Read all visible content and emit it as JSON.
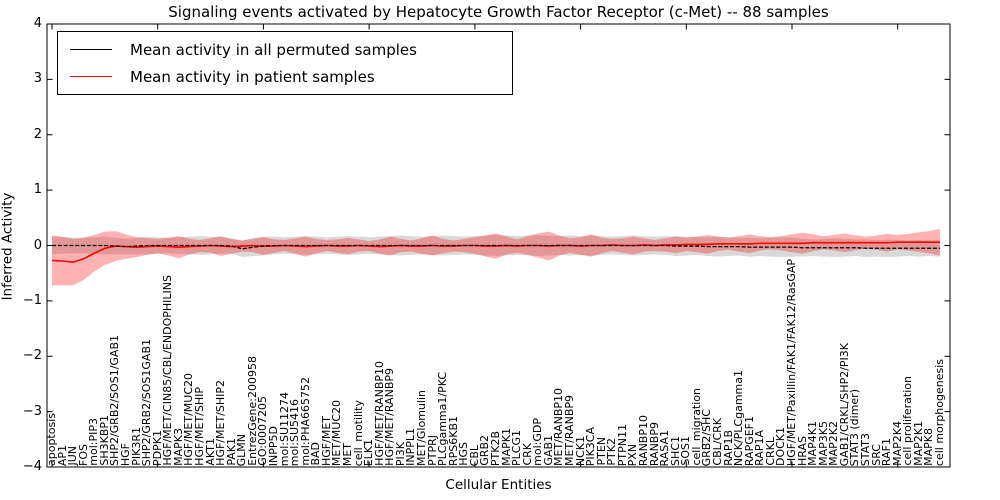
{
  "title": "Signaling events activated by Hepatocyte Growth Factor Receptor (c-Met) -- 88 samples",
  "chart_data": {
    "type": "line",
    "title": "Signaling events activated by Hepatocyte Growth Factor Receptor (c-Met) -- 88 samples",
    "xlabel": "Cellular Entities",
    "ylabel": "Inferred Activity",
    "ylim": [
      -4,
      4
    ],
    "ytick_labels": [
      "4",
      "3",
      "2",
      "1",
      "0",
      "−1",
      "−2",
      "−3",
      "−4"
    ],
    "grid": false,
    "legend_position": "upper left",
    "categories": [
      "apoptosis",
      "AP1",
      "JUN",
      "FOS",
      "mol:PIP3",
      "SH3KBP1",
      "SHP2/GRB2/SOS1/GAB1",
      "HGF",
      "PIK3R1",
      "SHP2/GRB2/SOS1GAB1",
      "PDPK1",
      "HGF/MET/CIN85/CBL/ENDOPHILINS",
      "MAPK3",
      "HGF/MET/MUC20",
      "HGF/MET/SHIP",
      "AKT1",
      "HGF/MET/SHIP2",
      "PAK1",
      "GLMN",
      "EntrezGene:200958",
      "GO:0007205",
      "INPP5D",
      "mol:SU11274",
      "mol:SU5416",
      "mol:PHA665752",
      "BAD",
      "HGF/MET",
      "MET/MUC20",
      "MET",
      "cell_motility",
      "ELK1",
      "HGF/MET/RANBP10",
      "HGF/MET/RANBP9",
      "PI3K",
      "INPPL1",
      "MET/Glomulin",
      "PTPRJ",
      "PLCgamma1/PKC",
      "RPS6KB1",
      "HGS",
      "CBL",
      "GRB2",
      "PTK2B",
      "MAPK1",
      "PLCG1",
      "CRK",
      "mol:GDP",
      "GAB1",
      "MET/RANBP10",
      "MET/RANBP9",
      "NCK1",
      "PIK3CA",
      "PTEN",
      "PTK2",
      "PTPN11",
      "PXN",
      "RANBP10",
      "RANBP9",
      "RASA1",
      "SHC1",
      "SOS1",
      "cell_migration",
      "GRB2/SHC",
      "CBL/CRK",
      "RAP1B",
      "NCK/PLCgamma1",
      "RAPGEF1",
      "RAP1A",
      "CRKL",
      "DOCK1",
      "HGF/MET/Paxillin/FAK1/FAK12/RasGAP",
      "HRAS",
      "MAP4K1",
      "MAP3K5",
      "MAP2K2",
      "GAB1/CRKL/SHP2/PI3K",
      "STAT3 (dimer)",
      "STAT3",
      "SRC",
      "RAF1",
      "MAP2K4",
      "cell proliferation",
      "MAP2K1",
      "MAPK8",
      "cell morphogenesis"
    ],
    "series": [
      {
        "name": "Mean activity in all permuted samples",
        "color": "#000000",
        "style": "dashed",
        "band_color": "rgba(128,128,128,0.30)",
        "values": [
          0,
          0,
          0,
          0,
          0,
          0,
          -0.01,
          -0.02,
          -0.01,
          0,
          0,
          0,
          0,
          0,
          0,
          0,
          0,
          -0.01,
          -0.06,
          -0.03,
          -0.01,
          0,
          0,
          0,
          0,
          0,
          0,
          0,
          0,
          0,
          0,
          0,
          0,
          0,
          0,
          0,
          0,
          0,
          0,
          0,
          0,
          0,
          0,
          0,
          0,
          0,
          0,
          0,
          0,
          0,
          0,
          0,
          0,
          0,
          0,
          0,
          0,
          0,
          0,
          -0.01,
          -0.01,
          -0.01,
          -0.02,
          -0.02,
          -0.02,
          -0.02,
          -0.03,
          -0.03,
          -0.03,
          -0.03,
          -0.03,
          -0.04,
          -0.04,
          -0.04,
          -0.04,
          -0.04,
          -0.04,
          -0.05,
          -0.05,
          -0.05,
          -0.05,
          -0.05,
          -0.05,
          -0.05,
          -0.05
        ],
        "std": [
          0.16,
          0.15,
          0.14,
          0.14,
          0.15,
          0.16,
          0.15,
          0.14,
          0.15,
          0.16,
          0.15,
          0.14,
          0.15,
          0.16,
          0.17,
          0.16,
          0.15,
          0.14,
          0.15,
          0.16,
          0.17,
          0.16,
          0.15,
          0.16,
          0.17,
          0.16,
          0.15,
          0.16,
          0.17,
          0.16,
          0.15,
          0.16,
          0.17,
          0.18,
          0.17,
          0.16,
          0.17,
          0.18,
          0.17,
          0.16,
          0.17,
          0.18,
          0.19,
          0.18,
          0.17,
          0.18,
          0.19,
          0.18,
          0.17,
          0.18,
          0.17,
          0.18,
          0.17,
          0.16,
          0.17,
          0.18,
          0.17,
          0.16,
          0.17,
          0.18,
          0.17,
          0.16,
          0.17,
          0.18,
          0.17,
          0.16,
          0.17,
          0.16,
          0.17,
          0.18,
          0.17,
          0.16,
          0.15,
          0.16,
          0.17,
          0.16,
          0.15,
          0.16,
          0.15,
          0.16,
          0.15,
          0.14,
          0.15,
          0.14,
          0.15
        ]
      },
      {
        "name": "Mean activity in patient samples",
        "color": "#ff0000",
        "style": "solid",
        "band_color": "rgba(255,0,0,0.30)",
        "values": [
          -0.27,
          -0.28,
          -0.3,
          -0.24,
          -0.14,
          -0.05,
          -0.01,
          -0.02,
          -0.03,
          -0.02,
          -0.01,
          -0.02,
          -0.03,
          -0.02,
          -0.01,
          0,
          -0.01,
          -0.02,
          -0.01,
          0,
          -0.01,
          -0.01,
          0,
          -0.01,
          -0.02,
          -0.01,
          0,
          -0.01,
          -0.01,
          0,
          -0.01,
          -0.02,
          -0.01,
          0,
          -0.01,
          -0.01,
          0,
          -0.01,
          -0.01,
          0,
          0,
          -0.01,
          -0.01,
          0,
          -0.01,
          0,
          0,
          -0.01,
          0,
          0,
          -0.01,
          0,
          0,
          0.01,
          0,
          0,
          0.01,
          0,
          0.01,
          0.01,
          0.02,
          0.02,
          0.02,
          0.03,
          0.03,
          0.03,
          0.03,
          0.04,
          0.04,
          0.04,
          0.04,
          0.04,
          0.05,
          0.05,
          0.05,
          0.05,
          0.05,
          0.05,
          0.05,
          0.05,
          0.06,
          0.06,
          0.06,
          0.06,
          0.06
        ],
        "std": [
          0.45,
          0.44,
          0.42,
          0.38,
          0.33,
          0.3,
          0.27,
          0.22,
          0.18,
          0.15,
          0.13,
          0.16,
          0.2,
          0.14,
          0.11,
          0.13,
          0.18,
          0.13,
          0.1,
          0.12,
          0.16,
          0.12,
          0.1,
          0.14,
          0.18,
          0.13,
          0.1,
          0.12,
          0.15,
          0.11,
          0.09,
          0.13,
          0.17,
          0.12,
          0.1,
          0.14,
          0.18,
          0.13,
          0.1,
          0.12,
          0.15,
          0.19,
          0.23,
          0.16,
          0.12,
          0.17,
          0.22,
          0.26,
          0.18,
          0.13,
          0.16,
          0.2,
          0.14,
          0.11,
          0.13,
          0.16,
          0.12,
          0.1,
          0.12,
          0.15,
          0.12,
          0.14,
          0.17,
          0.13,
          0.11,
          0.14,
          0.17,
          0.13,
          0.11,
          0.13,
          0.16,
          0.19,
          0.15,
          0.12,
          0.14,
          0.17,
          0.13,
          0.11,
          0.13,
          0.16,
          0.13,
          0.15,
          0.18,
          0.2,
          0.24
        ]
      }
    ]
  }
}
